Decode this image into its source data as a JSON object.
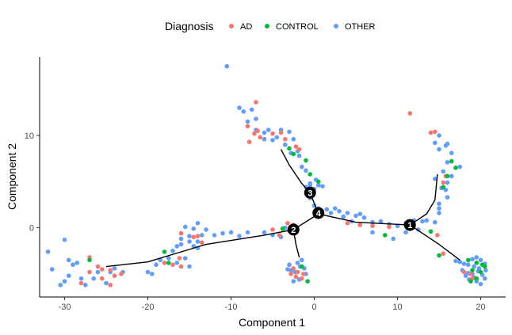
{
  "chart_data": {
    "type": "scatter",
    "xlabel": "Component 1",
    "ylabel": "Component 2",
    "xlim": [
      -33,
      23
    ],
    "ylim": [
      -7.5,
      18.5
    ],
    "xticks": [
      -30,
      -20,
      -10,
      0,
      10,
      20
    ],
    "yticks": [
      0,
      10
    ],
    "grid": false,
    "legend": {
      "title": "Diagnosis",
      "position": "top",
      "entries": [
        {
          "label": "AD",
          "color": "#F8766D"
        },
        {
          "label": "CONTROL",
          "color": "#00BA38"
        },
        {
          "label": "OTHER",
          "color": "#619CFF"
        }
      ]
    },
    "series": [
      {
        "name": "AD",
        "color": "#F8766D",
        "points": [
          [
            -27,
            -4.8
          ],
          [
            -25.5,
            -5.5
          ],
          [
            -24.5,
            -6.2
          ],
          [
            -26,
            -4.2
          ],
          [
            -24,
            -5.2
          ],
          [
            -23.2,
            -5
          ],
          [
            -28,
            -6
          ],
          [
            -27,
            -3.2
          ],
          [
            -25.5,
            -4.5
          ],
          [
            -24.5,
            -4.6
          ],
          [
            -18,
            -3.8
          ],
          [
            -17,
            -4
          ],
          [
            -16.2,
            -3.3
          ],
          [
            -16,
            -4.2
          ],
          [
            -14.5,
            -1
          ],
          [
            -16,
            -0.6
          ],
          [
            -14,
            -0.9
          ],
          [
            -13.5,
            -1.6
          ],
          [
            -5,
            -0.2
          ],
          [
            -4.2,
            -0.8
          ],
          [
            -3.2,
            0.5
          ],
          [
            -2.5,
            0.3
          ],
          [
            -2.8,
            -5
          ],
          [
            -2,
            -4.8
          ],
          [
            -1.5,
            -5.5
          ],
          [
            -2.5,
            -4.4
          ],
          [
            -1.3,
            -5
          ],
          [
            -2.2,
            -5.3
          ],
          [
            -8,
            11
          ],
          [
            -7.2,
            10.2
          ],
          [
            -6.5,
            9.8
          ],
          [
            -6.8,
            10.5
          ],
          [
            -7,
            13.6
          ],
          [
            -7.8,
            9.3
          ],
          [
            -5,
            10.2
          ],
          [
            -4,
            10.3
          ],
          [
            -3.5,
            9.6
          ],
          [
            -2.2,
            8.8
          ],
          [
            -1.8,
            8.5
          ],
          [
            4,
            0.5
          ],
          [
            5.5,
            0.3
          ],
          [
            7,
            0.2
          ],
          [
            9,
            0.1
          ],
          [
            11.5,
            12.4
          ],
          [
            14,
            10.3
          ],
          [
            14.5,
            10.4
          ],
          [
            15.5,
            4.9
          ],
          [
            15.8,
            5.6
          ],
          [
            14.8,
            -0.8
          ],
          [
            15.5,
            -2.8
          ],
          [
            18,
            -4.8
          ],
          [
            18.8,
            -5
          ],
          [
            19,
            -5.5
          ]
        ]
      },
      {
        "name": "CONTROL",
        "color": "#00BA38",
        "points": [
          [
            -27,
            -3.5
          ],
          [
            -18,
            -2.6
          ],
          [
            -17.5,
            -3.8
          ],
          [
            -3.8,
            -0.1
          ],
          [
            -2.2,
            -0.2
          ],
          [
            -0.8,
            -5.8
          ],
          [
            -1.5,
            -4.2
          ],
          [
            -3,
            8.6
          ],
          [
            -2.5,
            8
          ],
          [
            -1,
            7.3
          ],
          [
            -0.5,
            5.8
          ],
          [
            0.5,
            5
          ],
          [
            8.5,
            -0.8
          ],
          [
            14,
            -0.4
          ],
          [
            15,
            -3
          ],
          [
            15.5,
            4.4
          ],
          [
            16,
            5.6
          ],
          [
            17,
            6.5
          ],
          [
            16.5,
            7.2
          ],
          [
            18.5,
            -3.5
          ],
          [
            19.5,
            -3.8
          ],
          [
            19,
            -4.6
          ],
          [
            20,
            -4.8
          ],
          [
            19.5,
            -5.5
          ],
          [
            20.2,
            -4
          ],
          [
            18.8,
            -5.8
          ],
          [
            20.5,
            -4.2
          ]
        ]
      },
      {
        "name": "OTHER",
        "color": "#619CFF",
        "points": [
          [
            -32,
            -2.6
          ],
          [
            -31.5,
            -4.5
          ],
          [
            -29.5,
            -3.5
          ],
          [
            -29,
            -4
          ],
          [
            -30,
            -1.3
          ],
          [
            -28.5,
            -3.8
          ],
          [
            -30.5,
            -6.2
          ],
          [
            -30,
            -5.8
          ],
          [
            -29.5,
            -5.2
          ],
          [
            -28,
            -5.5
          ],
          [
            -27.5,
            -6.2
          ],
          [
            -26.5,
            -5.5
          ],
          [
            -26,
            -4.8
          ],
          [
            -25,
            -6
          ],
          [
            -24.5,
            -4.8
          ],
          [
            -24,
            -4.4
          ],
          [
            -23,
            -4.8
          ],
          [
            -20,
            -4.8
          ],
          [
            -19.5,
            -5
          ],
          [
            -19,
            -4
          ],
          [
            -18.5,
            -3.5
          ],
          [
            -17.5,
            -3.3
          ],
          [
            -17,
            -2.5
          ],
          [
            -16.5,
            -2
          ],
          [
            -16,
            -1.8
          ],
          [
            -15,
            -1.5
          ],
          [
            -14.5,
            -2
          ],
          [
            -14,
            -1.5
          ],
          [
            -13.5,
            -0.8
          ],
          [
            -16.5,
            -3.8
          ],
          [
            -15.5,
            -3.3
          ],
          [
            -15,
            -4.2
          ],
          [
            -14,
            -2.2
          ],
          [
            -16,
            -1.2
          ],
          [
            -15,
            -0.9
          ],
          [
            -15.5,
            0.1
          ],
          [
            -14,
            0.5
          ],
          [
            -13,
            -0.2
          ],
          [
            -14.5,
            -0.1
          ],
          [
            -12,
            -0.8
          ],
          [
            -11,
            -0.6
          ],
          [
            -10,
            -0.5
          ],
          [
            -9,
            -0.9
          ],
          [
            -8,
            -0.5
          ],
          [
            -6,
            -0.5
          ],
          [
            -5,
            -0.8
          ],
          [
            -4,
            -1
          ],
          [
            -3.5,
            0
          ],
          [
            -3,
            -0.3
          ],
          [
            -2,
            -3.8
          ],
          [
            -1.5,
            -3.5
          ],
          [
            -3,
            -4
          ],
          [
            -2.8,
            -4.6
          ],
          [
            -1.7,
            -4.2
          ],
          [
            -2.3,
            -4.8
          ],
          [
            -1.2,
            -4.4
          ],
          [
            -1.8,
            -5.6
          ],
          [
            -2.5,
            -5.8
          ],
          [
            -3.2,
            -4.5
          ],
          [
            -1,
            -5
          ],
          [
            -10.5,
            17.5
          ],
          [
            -9,
            13
          ],
          [
            -8.5,
            12.6
          ],
          [
            -8,
            11.5
          ],
          [
            -7.5,
            12.8
          ],
          [
            -7,
            11.8
          ],
          [
            -7,
            10.6
          ],
          [
            -6,
            10.3
          ],
          [
            -5.5,
            10.6
          ],
          [
            -6,
            9.6
          ],
          [
            -5,
            9.5
          ],
          [
            -4.5,
            9.8
          ],
          [
            -4,
            10.6
          ],
          [
            -3,
            10.4
          ],
          [
            -2.5,
            9.6
          ],
          [
            -3.5,
            9
          ],
          [
            -2,
            8.3
          ],
          [
            -2.8,
            8.1
          ],
          [
            -1.8,
            7.8
          ],
          [
            -1.5,
            6.6
          ],
          [
            -1,
            6.2
          ],
          [
            -0.5,
            4.8
          ],
          [
            0,
            4.2
          ],
          [
            -0.5,
            4.6
          ],
          [
            0.5,
            4.6
          ],
          [
            1,
            4.5
          ],
          [
            0.2,
            5.2
          ],
          [
            -1,
            4.4
          ],
          [
            -0.5,
            3.2
          ],
          [
            0,
            2.4
          ],
          [
            0.5,
            2.1
          ],
          [
            1.5,
            2
          ],
          [
            2,
            1.6
          ],
          [
            2.5,
            2.1
          ],
          [
            3,
            1.8
          ],
          [
            3.5,
            1.2
          ],
          [
            4,
            1.6
          ],
          [
            5,
            1.3
          ],
          [
            5.5,
            1.5
          ],
          [
            4.5,
            0.7
          ],
          [
            6,
            1.1
          ],
          [
            7,
            0.6
          ],
          [
            8,
            0.7
          ],
          [
            9,
            0.4
          ],
          [
            10,
            0.2
          ],
          [
            11,
            0.5
          ],
          [
            12,
            0.8
          ],
          [
            13,
            0.7
          ],
          [
            7,
            -0.5
          ],
          [
            9.5,
            -1.2
          ],
          [
            11,
            -0.5
          ],
          [
            12.5,
            -0.2
          ],
          [
            14.5,
            0.6
          ],
          [
            13.5,
            0.8
          ],
          [
            15,
            1.6
          ],
          [
            15,
            2.1
          ],
          [
            15.8,
            4.1
          ],
          [
            15,
            2.6
          ],
          [
            16,
            3.3
          ],
          [
            15.3,
            4.3
          ],
          [
            16,
            4.9
          ],
          [
            14.5,
            5.3
          ],
          [
            16.5,
            5.6
          ],
          [
            15.5,
            6.1
          ],
          [
            17.5,
            6.6
          ],
          [
            16,
            7.1
          ],
          [
            16.5,
            8.1
          ],
          [
            15,
            8.5
          ],
          [
            15.8,
            8.9
          ],
          [
            14.5,
            9.2
          ],
          [
            16,
            9.1
          ],
          [
            15,
            10
          ],
          [
            17,
            -3.6
          ],
          [
            17.5,
            -3.7
          ],
          [
            18,
            -3.9
          ],
          [
            18.5,
            -4
          ],
          [
            19,
            -3.4
          ],
          [
            19.2,
            -4.2
          ],
          [
            19.5,
            -3.2
          ],
          [
            20,
            -3.5
          ],
          [
            20.5,
            -3.9
          ],
          [
            17.8,
            -4.6
          ],
          [
            18.5,
            -4.9
          ],
          [
            19,
            -5
          ],
          [
            19.8,
            -4.4
          ],
          [
            20.2,
            -5.1
          ],
          [
            20.5,
            -5.5
          ],
          [
            19.5,
            -5.8
          ],
          [
            20,
            -6.1
          ],
          [
            19.2,
            -5.4
          ],
          [
            18.6,
            -5.6
          ],
          [
            18.2,
            -5.2
          ],
          [
            20.6,
            -4.6
          ],
          [
            19.7,
            -4.7
          ]
        ]
      }
    ],
    "trajectory": [
      [
        [
          -25,
          -4.2
        ],
        [
          -20,
          -3.7
        ],
        [
          -13,
          -1.8
        ],
        [
          -6,
          -0.8
        ],
        [
          -2.5,
          -0.2
        ]
      ],
      [
        [
          -2.5,
          -0.2
        ],
        [
          0.5,
          1.5
        ]
      ],
      [
        [
          -1.8,
          -3.2
        ],
        [
          -2.2,
          -1.8
        ],
        [
          -2.5,
          -0.2
        ]
      ],
      [
        [
          -4,
          8.5
        ],
        [
          -3,
          6.8
        ],
        [
          -1.5,
          4.8
        ],
        [
          -0.5,
          3.8
        ],
        [
          0.5,
          1.5
        ]
      ],
      [
        [
          0.5,
          1.5
        ],
        [
          5,
          0.6
        ],
        [
          11.5,
          0.3
        ]
      ],
      [
        [
          11.5,
          0.3
        ],
        [
          13.5,
          1.5
        ],
        [
          14.5,
          3
        ],
        [
          14.8,
          5.8
        ]
      ],
      [
        [
          11.5,
          0.3
        ],
        [
          15,
          -1.8
        ],
        [
          17.5,
          -3.5
        ]
      ]
    ],
    "nodes": [
      {
        "label": "1",
        "x": 11.5,
        "y": 0.3
      },
      {
        "label": "2",
        "x": -2.5,
        "y": -0.2
      },
      {
        "label": "3",
        "x": -0.5,
        "y": 3.8
      },
      {
        "label": "4",
        "x": 0.5,
        "y": 1.6
      }
    ]
  }
}
